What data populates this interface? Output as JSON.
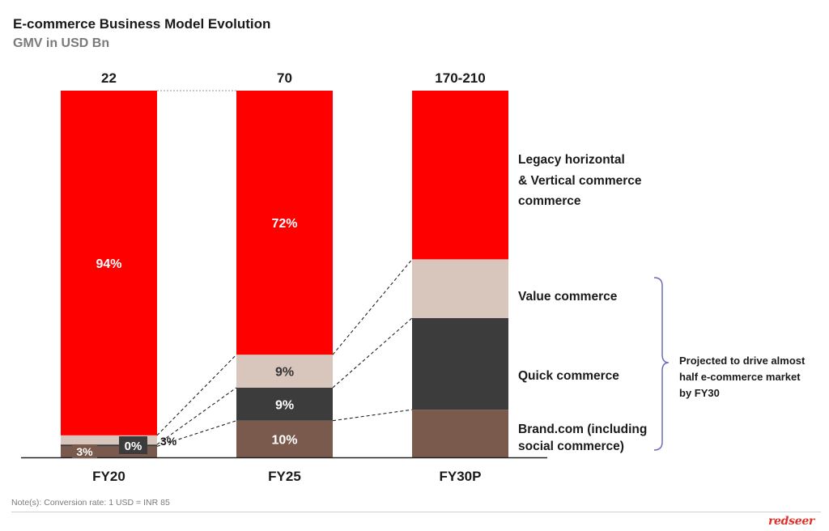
{
  "header": {
    "title": "E-commerce Business Model Evolution",
    "subtitle": "GMV in USD Bn"
  },
  "footer": {
    "note": "Note(s): Conversion rate: 1 USD = INR 85",
    "logo": "redseer"
  },
  "annotation": {
    "bracket_text": [
      "Projected to drive almost",
      "half e-commerce market",
      "by FY30"
    ]
  },
  "colors": {
    "legacy": "#ff0000",
    "value": "#d8c6bd",
    "quick": "#3c3c3c",
    "brand": "#7a5a4d"
  },
  "chart_data": {
    "type": "bar",
    "stacked": true,
    "normalized": true,
    "categories": [
      "FY20",
      "FY25",
      "FY30P"
    ],
    "totals": [
      "22",
      "70",
      "170-210"
    ],
    "series": [
      {
        "name": "Brand.com (including social commerce)",
        "values": [
          3,
          10,
          13
        ],
        "labels": [
          "3%",
          "10%",
          ""
        ]
      },
      {
        "name": "Quick commerce",
        "values": [
          0.5,
          9,
          25
        ],
        "labels": [
          "0%",
          "9%",
          ""
        ]
      },
      {
        "name": "Value commerce",
        "values": [
          2.5,
          9,
          16
        ],
        "labels": [
          "3%",
          "9%",
          ""
        ]
      },
      {
        "name": "Legacy horizontal & Vertical commerce commerce",
        "values": [
          94,
          72,
          46
        ],
        "labels": [
          "94%",
          "72%",
          ""
        ]
      }
    ],
    "legend_labels": [
      [
        "Legacy horizontal",
        " & Vertical commerce",
        "commerce"
      ],
      [
        "Value commerce"
      ],
      [
        "Quick commerce"
      ],
      [
        "Brand.com (including",
        "social commerce)"
      ]
    ],
    "ylim": [
      0,
      100
    ]
  }
}
